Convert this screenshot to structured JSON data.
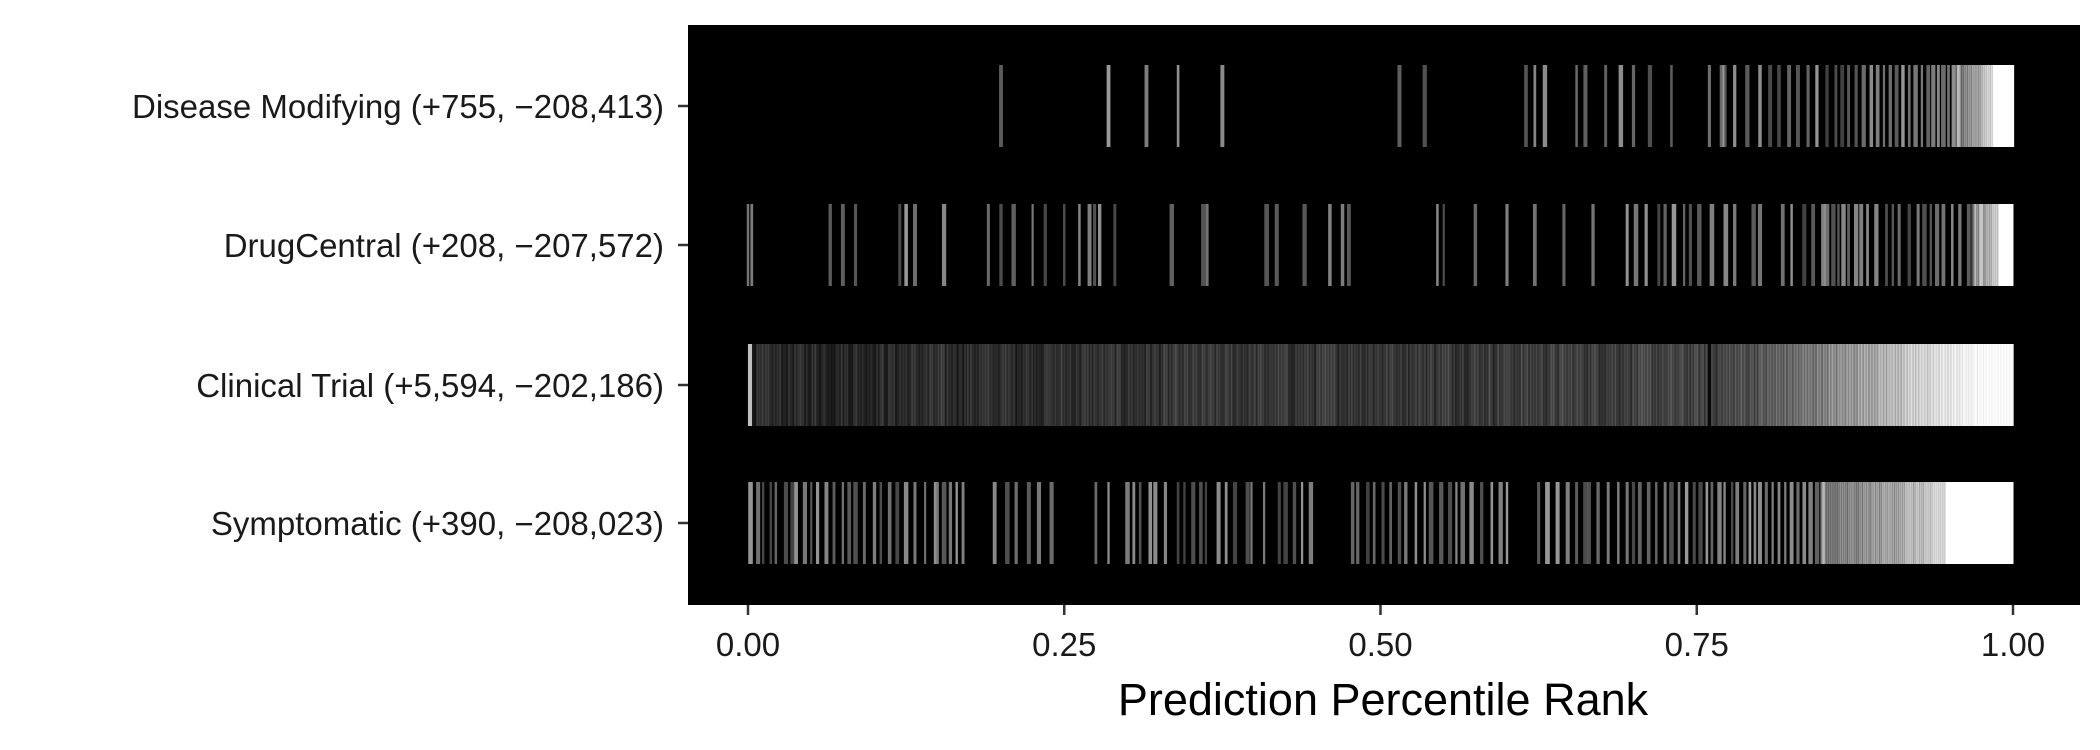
{
  "chart_data": {
    "type": "barcode",
    "xlabel": "Prediction Percentile Rank",
    "ylabel": "",
    "title": "",
    "xlim": [
      0,
      1
    ],
    "x_ticks": [
      0,
      0.25,
      0.5,
      0.75,
      1
    ],
    "x_tick_labels": [
      "0.00",
      "0.25",
      "0.50",
      "0.75",
      "1.00"
    ],
    "colors": {
      "panel": "#000000",
      "mark": "#ffffff",
      "text": "#1a1a1a"
    },
    "series": [
      {
        "name": "Disease Modifying",
        "label": "Disease Modifying (+755, −208,413)",
        "positives": 755,
        "negatives": 208413,
        "marks": [
          0.2,
          0.285,
          0.315,
          0.34,
          0.375,
          0.515,
          0.535,
          0.615,
          0.622,
          0.63,
          0.655,
          0.662,
          0.678,
          0.69,
          0.7,
          0.713,
          0.73,
          0.76,
          0.77,
          0.772,
          0.78,
          0.79,
          0.8,
          0.808,
          0.815,
          0.823,
          0.83,
          0.838,
          0.845,
          0.853,
          0.86,
          0.865,
          0.87,
          0.876,
          0.882,
          0.888,
          0.893,
          0.898,
          0.903,
          0.908,
          0.913,
          0.918,
          0.923,
          0.928,
          0.933,
          0.937,
          0.941,
          0.945,
          0.949,
          0.953,
          0.957
        ],
        "dense_start": 0.955,
        "dense_density": 0.95
      },
      {
        "name": "DrugCentral",
        "label": "DrugCentral (+208, −207,572)",
        "positives": 208,
        "negatives": 207572,
        "marks": [
          0.0,
          0.003,
          0.065,
          0.075,
          0.085,
          0.12,
          0.125,
          0.132,
          0.155,
          0.19,
          0.2,
          0.21,
          0.225,
          0.235,
          0.25,
          0.262,
          0.27,
          0.274,
          0.278,
          0.29,
          0.335,
          0.36,
          0.363,
          0.41,
          0.418,
          0.44,
          0.46,
          0.47,
          0.475,
          0.545,
          0.55,
          0.575,
          0.6,
          0.622,
          0.645,
          0.668,
          0.695,
          0.702,
          0.71,
          0.72,
          0.725,
          0.732,
          0.74,
          0.745,
          0.752,
          0.762,
          0.773,
          0.78,
          0.795,
          0.8,
          0.818,
          0.825,
          0.835,
          0.842,
          0.85,
          0.853,
          0.858,
          0.862,
          0.866,
          0.87,
          0.876,
          0.88,
          0.885,
          0.892,
          0.9,
          0.905,
          0.91,
          0.918,
          0.925,
          0.93,
          0.935,
          0.94,
          0.945,
          0.952,
          0.958,
          0.965,
          0.97,
          0.975
        ],
        "dense_start": 0.968,
        "dense_density": 0.9
      },
      {
        "name": "Clinical Trial",
        "label": "Clinical Trial (+5,594, −202,186)",
        "positives": 5594,
        "negatives": 202186,
        "marks": [],
        "dense_start": 0.0,
        "dense_density": 0.35,
        "dense_end_density": 0.92,
        "gap_marks": [
          0.76
        ]
      },
      {
        "name": "Symptomatic",
        "label": "Symptomatic (+390, −208,023)",
        "positives": 390,
        "negatives": 208023,
        "marks": [
          0.002,
          0.008,
          0.012,
          0.018,
          0.022,
          0.03,
          0.035,
          0.038,
          0.045,
          0.05,
          0.055,
          0.062,
          0.068,
          0.075,
          0.08,
          0.085,
          0.092,
          0.1,
          0.105,
          0.112,
          0.118,
          0.125,
          0.132,
          0.14,
          0.148,
          0.15,
          0.155,
          0.16,
          0.165,
          0.17,
          0.195,
          0.205,
          0.212,
          0.222,
          0.23,
          0.24,
          0.275,
          0.285,
          0.3,
          0.305,
          0.31,
          0.318,
          0.322,
          0.33,
          0.34,
          0.345,
          0.352,
          0.358,
          0.362,
          0.372,
          0.378,
          0.385,
          0.395,
          0.398,
          0.408,
          0.42,
          0.425,
          0.432,
          0.438,
          0.445,
          0.478,
          0.482,
          0.49,
          0.495,
          0.502,
          0.508,
          0.515,
          0.52,
          0.528,
          0.535,
          0.54,
          0.548,
          0.555,
          0.56,
          0.565,
          0.572,
          0.58,
          0.588,
          0.595,
          0.6,
          0.625,
          0.632,
          0.64,
          0.648,
          0.655,
          0.662,
          0.665,
          0.672,
          0.68,
          0.688,
          0.695,
          0.7,
          0.705,
          0.712,
          0.718,
          0.725,
          0.73,
          0.736,
          0.742,
          0.748,
          0.753,
          0.758,
          0.762,
          0.768,
          0.772,
          0.778,
          0.782,
          0.788,
          0.792,
          0.796,
          0.8,
          0.805,
          0.81,
          0.815,
          0.82,
          0.825,
          0.83,
          0.835,
          0.84,
          0.845,
          0.85
        ],
        "dense_start": 0.848,
        "dense_density": 0.8
      }
    ]
  }
}
